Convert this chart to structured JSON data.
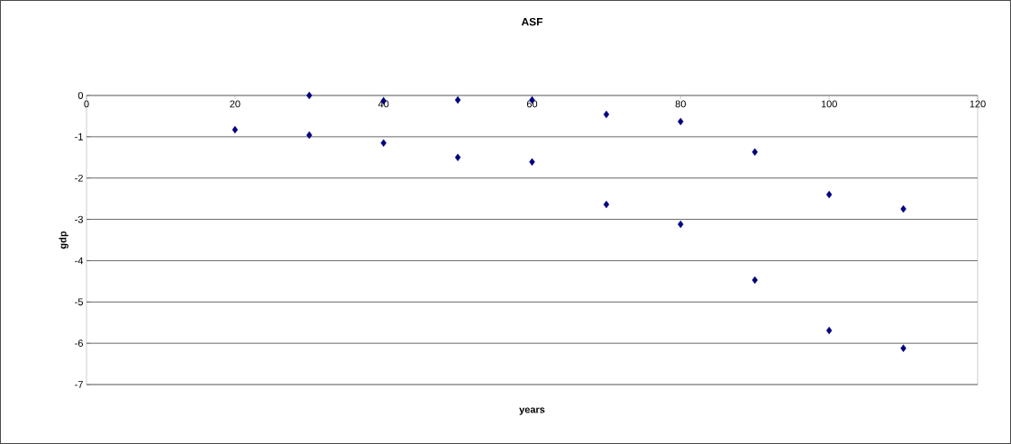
{
  "chart_data": {
    "type": "scatter",
    "title": "ASF",
    "xlabel": "years",
    "ylabel": "gdp",
    "x": [
      20,
      30,
      30,
      40,
      40,
      50,
      50,
      60,
      60,
      70,
      70,
      80,
      80,
      90,
      90,
      100,
      100,
      110,
      110
    ],
    "series": [
      {
        "color": "#000080",
        "values": [
          -0.83,
          0,
          -0.96,
          -0.13,
          -1.15,
          -0.11,
          -1.5,
          -0.11,
          -1.61,
          -0.46,
          -2.64,
          -0.63,
          -3.12,
          -1.37,
          -4.47,
          -2.4,
          -5.69,
          -2.75,
          -6.12
        ]
      }
    ],
    "xlim": [
      0,
      120
    ],
    "ylim": [
      -7,
      0
    ],
    "xticks": [
      0,
      20,
      40,
      60,
      80,
      100,
      120
    ],
    "yticks": [
      -7,
      -6,
      -5,
      -4,
      -3,
      -2,
      -1,
      0
    ],
    "grid": "y",
    "marker": "diamond"
  }
}
